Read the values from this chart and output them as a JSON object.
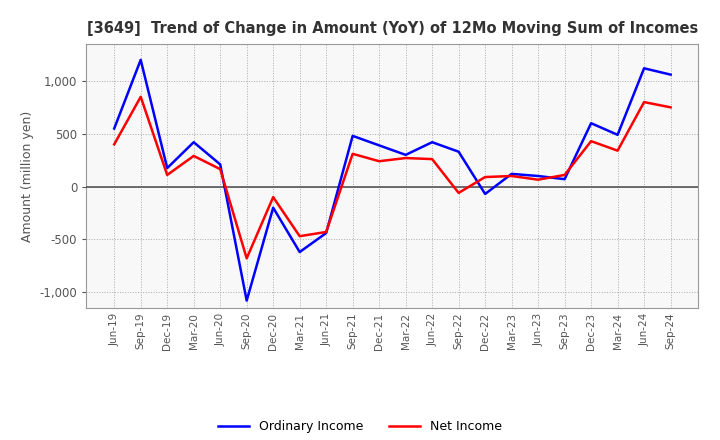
{
  "title": "[3649]  Trend of Change in Amount (YoY) of 12Mo Moving Sum of Incomes",
  "ylabel": "Amount (million yen)",
  "x_labels": [
    "Jun-19",
    "Sep-19",
    "Dec-19",
    "Mar-20",
    "Jun-20",
    "Sep-20",
    "Dec-20",
    "Mar-21",
    "Jun-21",
    "Sep-21",
    "Dec-21",
    "Mar-22",
    "Jun-22",
    "Sep-22",
    "Dec-22",
    "Mar-23",
    "Jun-23",
    "Sep-23",
    "Dec-23",
    "Mar-24",
    "Jun-24",
    "Sep-24"
  ],
  "ordinary_income": [
    550,
    1200,
    175,
    420,
    210,
    -1080,
    -200,
    -620,
    -440,
    480,
    390,
    300,
    420,
    330,
    -70,
    120,
    100,
    70,
    600,
    490,
    1120,
    1060
  ],
  "net_income": [
    400,
    850,
    110,
    290,
    165,
    -680,
    -100,
    -470,
    -430,
    310,
    240,
    270,
    260,
    -60,
    90,
    100,
    65,
    110,
    430,
    340,
    800,
    750
  ],
  "ordinary_income_color": "#0000FF",
  "net_income_color": "#FF0000",
  "ylim": [
    -1150,
    1350
  ],
  "yticks": [
    -1000,
    -500,
    0,
    500,
    1000
  ],
  "background_color": "#FFFFFF",
  "plot_bg_color": "#F8F8F8",
  "grid_color": "#AAAAAA",
  "zero_line_color": "#555555",
  "legend_labels": [
    "Ordinary Income",
    "Net Income"
  ],
  "title_color": "#333333",
  "tick_color": "#555555"
}
